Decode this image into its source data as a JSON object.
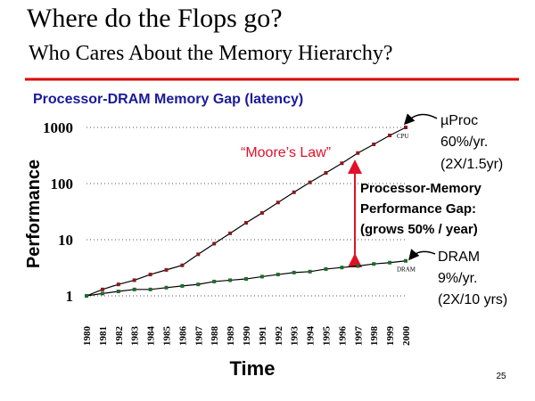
{
  "slide": {
    "title": "Where do the Flops go?",
    "subtitle": "Who Cares About the Memory Hierarchy?",
    "page_number": "25"
  },
  "chart_data": {
    "type": "line",
    "title": "Processor-DRAM Memory Gap (latency)",
    "x_label": "Time",
    "y_label": "Performance",
    "categories": [
      "1980",
      "1981",
      "1982",
      "1983",
      "1984",
      "1985",
      "1986",
      "1987",
      "1988",
      "1989",
      "1990",
      "1991",
      "1992",
      "1993",
      "1994",
      "1995",
      "1996",
      "1997",
      "1998",
      "1999",
      "2000"
    ],
    "series": [
      {
        "name": "CPU",
        "color": "#8b1a1a",
        "values": [
          1,
          1.3,
          1.6,
          1.9,
          2.4,
          2.9,
          3.5,
          5.5,
          8.5,
          13,
          20,
          30,
          46,
          70,
          105,
          155,
          230,
          350,
          500,
          720,
          1000
        ]
      },
      {
        "name": "DRAM",
        "color": "#1e6b2a",
        "values": [
          1,
          1.1,
          1.2,
          1.3,
          1.3,
          1.4,
          1.5,
          1.6,
          1.8,
          1.9,
          2,
          2.2,
          2.4,
          2.6,
          2.7,
          3,
          3.2,
          3.4,
          3.7,
          3.9,
          4.2
        ]
      }
    ],
    "yscale": "log",
    "ylim": [
      1,
      1000
    ],
    "yticks": [
      1,
      10,
      100,
      1000
    ],
    "grid": true,
    "moore_label": "“Moore’s Law”",
    "gap_label": [
      "Processor-Memory",
      "Performance Gap:",
      "(grows 50% / year)"
    ],
    "cpu_note": [
      "µProc",
      "60%/yr.",
      "(2X/1.5yr)"
    ],
    "dram_note": [
      "DRAM",
      "9%/yr.",
      "(2X/10 yrs)"
    ]
  }
}
